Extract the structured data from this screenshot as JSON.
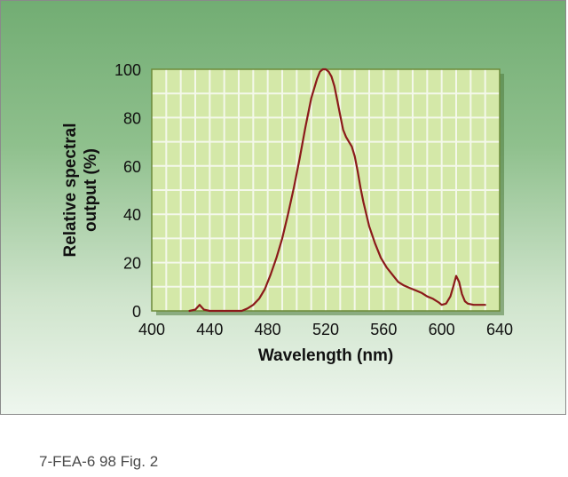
{
  "chart_data": {
    "type": "line",
    "title": "",
    "xlabel": "Wavelength (nm)",
    "ylabel_lines": [
      "Relative spectral",
      "output (%)"
    ],
    "xlim": [
      400,
      640
    ],
    "ylim": [
      0,
      100
    ],
    "xticks": [
      400,
      440,
      480,
      520,
      560,
      600,
      640
    ],
    "yticks": [
      0,
      20,
      40,
      60,
      80,
      100
    ],
    "grid": true,
    "colors": {
      "line": "#8b1a1a",
      "plot_bg": "#d4e8a8",
      "grid": "#f4f8ea",
      "frame": "#6c8a3a"
    },
    "series": [
      {
        "x": [
          426,
          430,
          433,
          436,
          440,
          462,
          466,
          470,
          474,
          478,
          482,
          486,
          490,
          494,
          498,
          502,
          506,
          510,
          514,
          516,
          518,
          520,
          522,
          524,
          526,
          528,
          530,
          532,
          534,
          536,
          538,
          540,
          542,
          544,
          546,
          550,
          554,
          558,
          562,
          566,
          570,
          574,
          578,
          582,
          586,
          590,
          594,
          598,
          600,
          603,
          606,
          608,
          610,
          612,
          614,
          616,
          618,
          622,
          626,
          630
        ],
        "y": [
          0,
          0.5,
          2.5,
          0.5,
          0,
          0,
          1,
          2.5,
          5,
          9,
          15,
          22,
          30,
          40,
          51,
          63,
          76,
          88,
          96,
          99,
          100,
          100,
          99,
          97,
          93,
          87,
          81,
          75,
          72,
          70,
          68,
          64,
          58,
          51,
          45,
          35,
          28,
          22,
          18,
          15,
          12,
          10.5,
          9.5,
          8.5,
          7.5,
          6,
          5,
          3.5,
          2.5,
          3,
          6,
          10,
          14.5,
          12,
          7,
          4,
          3,
          2.5,
          2.5,
          2.5
        ]
      }
    ]
  },
  "caption": "7-FEA-6 98 Fig. 2"
}
